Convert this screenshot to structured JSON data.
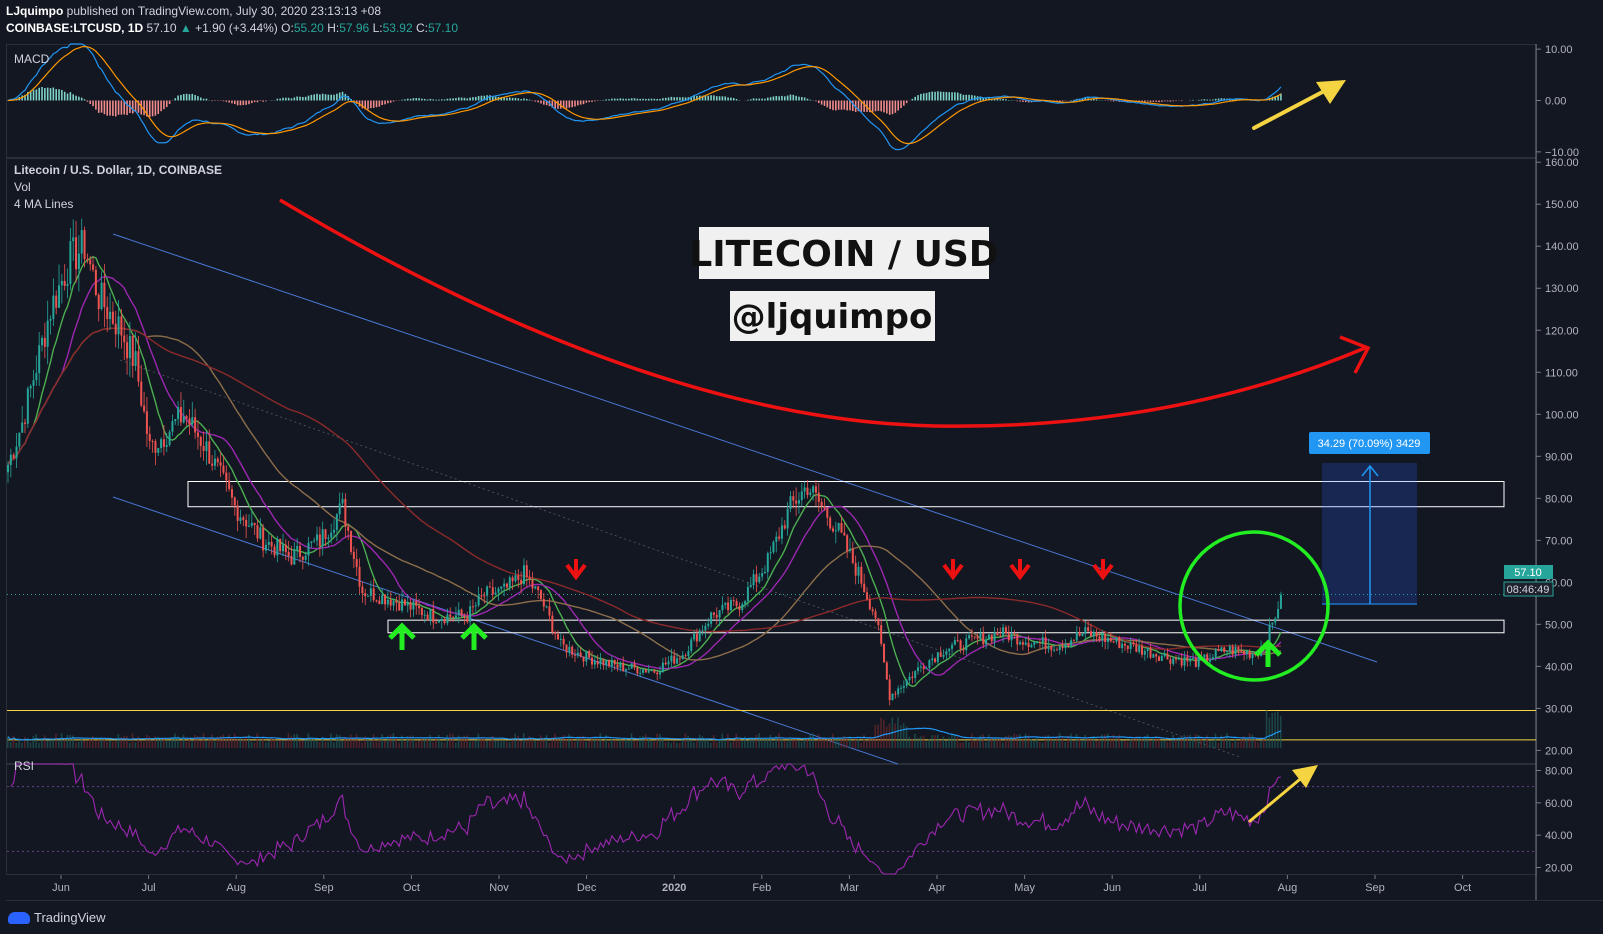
{
  "header": {
    "author": "LJquimpo",
    "published": "published on TradingView.com, July 30, 2020 23:13:13 +08",
    "symbol": "COINBASE:LTCUSD, 1D",
    "last": "57.10",
    "change": "+1.90 (+3.44%)",
    "o_label": "O:",
    "o": "55.20",
    "h_label": "H:",
    "h": "57.96",
    "l_label": "L:",
    "l": "53.92",
    "c_label": "C:",
    "c": "57.10"
  },
  "panes": {
    "macd": "MACD",
    "main_title": "Litecoin / U.S. Dollar, 1D, COINBASE",
    "vol": "Vol",
    "ma": "4 MA Lines",
    "rsi": "RSI"
  },
  "annotations": {
    "title": "LITECOIN / USD",
    "handle": "@ljquimpo",
    "measure": "34.29 (70.09%) 3429",
    "price_tag": "57.10",
    "countdown": "08:46:49"
  },
  "footer": {
    "brand": "TradingView"
  },
  "colors": {
    "background": "#131722",
    "up": "#26a69a",
    "down": "#ef5350",
    "channel": "#4a78d6",
    "red_arrow": "#ee1111",
    "green_arrow": "#22ee22",
    "yellow": "#f5d442",
    "rsi": "#9c27b0",
    "measure": "#2196f3"
  },
  "chart_data": {
    "type": "candlestick",
    "x_ticks": [
      "Jun",
      "Jul",
      "Aug",
      "Sep",
      "Oct",
      "Nov",
      "Dec",
      "2020",
      "Feb",
      "Mar",
      "Apr",
      "May",
      "Jun",
      "Jul",
      "Aug",
      "Sep",
      "Oct"
    ],
    "price_ticks": [
      "160.00",
      "150.00",
      "140.00",
      "130.00",
      "120.00",
      "110.00",
      "100.00",
      "90.00",
      "80.00",
      "70.00",
      "60.00",
      "50.00",
      "40.00",
      "30.00",
      "20.00"
    ],
    "price_range": [
      17,
      161
    ],
    "macd_ticks": [
      "10.00",
      "0.00",
      "−10.00"
    ],
    "macd_range": [
      -11,
      11
    ],
    "rsi_ticks": [
      "80.00",
      "60.00",
      "40.00",
      "20.00"
    ],
    "rsi_range": [
      16,
      84
    ],
    "price_keypoints": [
      [
        0,
        88
      ],
      [
        5,
        98
      ],
      [
        15,
        125
      ],
      [
        22,
        137
      ],
      [
        27,
        140
      ],
      [
        32,
        128
      ],
      [
        40,
        120
      ],
      [
        45,
        112
      ],
      [
        50,
        92
      ],
      [
        55,
        95
      ],
      [
        62,
        100
      ],
      [
        70,
        92
      ],
      [
        80,
        78
      ],
      [
        90,
        70
      ],
      [
        100,
        66
      ],
      [
        110,
        70
      ],
      [
        118,
        78
      ],
      [
        125,
        58
      ],
      [
        135,
        56
      ],
      [
        150,
        52
      ],
      [
        162,
        52
      ],
      [
        168,
        57
      ],
      [
        175,
        58
      ],
      [
        182,
        62
      ],
      [
        188,
        56
      ],
      [
        195,
        45
      ],
      [
        205,
        42
      ],
      [
        215,
        40
      ],
      [
        228,
        39
      ],
      [
        238,
        43
      ],
      [
        248,
        52
      ],
      [
        258,
        55
      ],
      [
        268,
        65
      ],
      [
        276,
        78
      ],
      [
        282,
        83
      ],
      [
        288,
        77
      ],
      [
        293,
        72
      ],
      [
        300,
        62
      ],
      [
        306,
        52
      ],
      [
        311,
        33
      ],
      [
        316,
        36
      ],
      [
        322,
        40
      ],
      [
        330,
        44
      ],
      [
        340,
        46
      ],
      [
        350,
        48
      ],
      [
        360,
        46
      ],
      [
        370,
        45
      ],
      [
        380,
        48
      ],
      [
        390,
        46
      ],
      [
        400,
        44
      ],
      [
        410,
        42
      ],
      [
        420,
        41
      ],
      [
        430,
        44
      ],
      [
        440,
        43
      ],
      [
        443,
        45
      ],
      [
        446,
        50
      ],
      [
        449,
        57
      ]
    ],
    "volume_note": "daily volume bars with volume MA",
    "rsi_last": 76,
    "macd_last": 3.5,
    "horizontal_zones": [
      [
        78,
        84
      ],
      [
        48,
        51
      ]
    ],
    "yellow_levels": [
      29.5,
      22.5
    ],
    "dotted_level": 57.1
  }
}
